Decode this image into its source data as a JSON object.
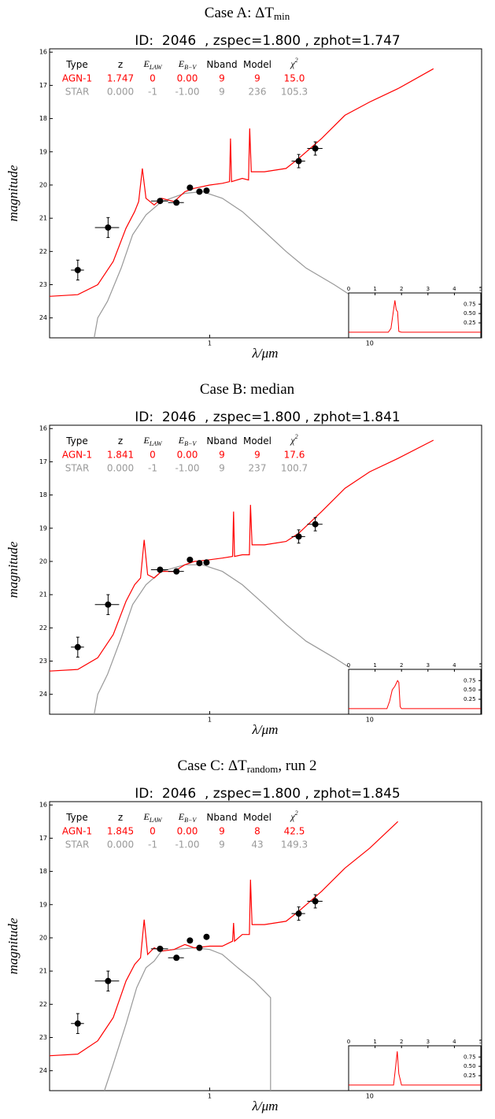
{
  "chart_data": [
    {
      "type": "sed",
      "title": {
        "text": "Case A: ΔT",
        "sub": "min"
      },
      "plot_title": "ID:  2046  , zspec=1.800 , zphot=1.747",
      "x_label": "λ/μm",
      "y_label": "magnitude",
      "log_x": true,
      "xlim": [
        0.1,
        50
      ],
      "xticks": [
        1,
        10
      ],
      "ylim": [
        24.6,
        15.9
      ],
      "yticks": [
        16,
        17,
        18,
        19,
        20,
        21,
        22,
        23,
        24
      ],
      "table": {
        "header": [
          {
            "text": "Type"
          },
          {
            "text": "z"
          },
          {
            "text": "E",
            "sub": "LAW"
          },
          {
            "text": "E",
            "sub": "B−V"
          },
          {
            "text": "Nband"
          },
          {
            "text": "Model"
          },
          {
            "text": "χ",
            "sup": "2"
          }
        ],
        "rows": [
          {
            "color": "#ff0000",
            "cells": [
              "AGN-1",
              "1.747",
              "0",
              "0.00",
              "9",
              "9",
              "15.0"
            ]
          },
          {
            "color": "#999999",
            "cells": [
              "STAR",
              "0.000",
              "-1",
              "-1.00",
              "9",
              "236",
              "105.3"
            ]
          }
        ]
      },
      "points": {
        "color": "#000000",
        "x": [
          0.15,
          0.232,
          0.49,
          0.62,
          0.753,
          0.863,
          0.956,
          3.6,
          4.57
        ],
        "y": [
          22.56,
          21.28,
          20.48,
          20.53,
          20.08,
          20.2,
          20.17,
          19.28,
          18.9
        ],
        "xerr": [
          0.014,
          0.04,
          0.06,
          0.07,
          0.02,
          0.03,
          0.03,
          0.35,
          0.5
        ],
        "yerr": [
          0.3,
          0.3,
          0.05,
          0.05,
          0.05,
          0.05,
          0.05,
          0.2,
          0.2
        ]
      },
      "curves": [
        {
          "color": "#999999",
          "x": [
            0.19,
            0.2,
            0.23,
            0.28,
            0.33,
            0.4,
            0.5,
            0.7,
            0.9,
            1.2,
            1.6,
            2.2,
            3,
            4,
            6,
            7.5
          ],
          "y": [
            24.6,
            24.0,
            23.5,
            22.5,
            21.5,
            20.9,
            20.5,
            20.25,
            20.2,
            20.4,
            20.8,
            21.4,
            22.0,
            22.5,
            23.0,
            23.3
          ]
        },
        {
          "color": "#ff0000",
          "x": [
            0.1,
            0.15,
            0.2,
            0.25,
            0.3,
            0.34,
            0.36,
            0.38,
            0.4,
            0.45,
            0.5,
            0.6,
            0.7,
            0.8,
            1.0,
            1.2,
            1.33,
            1.35,
            1.37,
            1.6,
            1.75,
            1.78,
            1.82,
            2.2,
            3,
            3.6,
            5,
            7,
            10,
            15,
            25
          ],
          "y": [
            23.35,
            23.3,
            23.0,
            22.3,
            21.3,
            20.8,
            20.5,
            19.5,
            20.4,
            20.6,
            20.4,
            20.5,
            20.2,
            20.1,
            20.0,
            19.95,
            19.9,
            18.6,
            19.9,
            19.8,
            19.85,
            18.3,
            19.6,
            19.6,
            19.5,
            19.2,
            18.6,
            17.9,
            17.5,
            17.1,
            16.5
          ]
        }
      ],
      "inset": {
        "xlim": [
          0,
          5
        ],
        "xticks": [
          0,
          1,
          2,
          3,
          4,
          5
        ],
        "ylim": [
          -0.15,
          1.05
        ],
        "yticks": [
          0.25,
          {
            "value": 0.5,
            "label": "0.50"
          },
          0.75
        ],
        "color": "#ff0000",
        "x": [
          0,
          1.5,
          1.6,
          1.7,
          1.75,
          1.8,
          1.85,
          1.9,
          2.0,
          5
        ],
        "y": [
          0,
          0,
          0.1,
          0.6,
          0.85,
          0.6,
          0.55,
          0.02,
          0,
          0
        ]
      }
    },
    {
      "type": "sed",
      "title": {
        "text": "Case B: median"
      },
      "plot_title": "ID:  2046  , zspec=1.800 , zphot=1.841",
      "x_label": "λ/μm",
      "y_label": "magnitude",
      "log_x": true,
      "xlim": [
        0.1,
        50
      ],
      "xticks": [
        1,
        10
      ],
      "ylim": [
        24.6,
        15.9
      ],
      "yticks": [
        16,
        17,
        18,
        19,
        20,
        21,
        22,
        23,
        24
      ],
      "table": {
        "header": [
          {
            "text": "Type"
          },
          {
            "text": "z"
          },
          {
            "text": "E",
            "sub": "LAW"
          },
          {
            "text": "E",
            "sub": "B−V"
          },
          {
            "text": "Nband"
          },
          {
            "text": "Model"
          },
          {
            "text": "χ",
            "sup": "2"
          }
        ],
        "rows": [
          {
            "color": "#ff0000",
            "cells": [
              "AGN-1",
              "1.841",
              "0",
              "0.00",
              "9",
              "9",
              "17.6"
            ]
          },
          {
            "color": "#999999",
            "cells": [
              "STAR",
              "0.000",
              "-1",
              "-1.00",
              "9",
              "237",
              "100.7"
            ]
          }
        ]
      },
      "points": {
        "color": "#000000",
        "x": [
          0.15,
          0.232,
          0.49,
          0.62,
          0.753,
          0.863,
          0.956,
          3.6,
          4.57
        ],
        "y": [
          22.58,
          21.3,
          20.25,
          20.3,
          19.95,
          20.05,
          20.03,
          19.25,
          18.88
        ],
        "xerr": [
          0.014,
          0.04,
          0.06,
          0.07,
          0.02,
          0.03,
          0.03,
          0.35,
          0.5
        ],
        "yerr": [
          0.3,
          0.3,
          0.05,
          0.05,
          0.05,
          0.05,
          0.05,
          0.2,
          0.2
        ]
      },
      "curves": [
        {
          "color": "#999999",
          "x": [
            0.19,
            0.2,
            0.23,
            0.28,
            0.33,
            0.4,
            0.5,
            0.7,
            0.9,
            1.2,
            1.6,
            2.2,
            3,
            4,
            6,
            7.5
          ],
          "y": [
            24.6,
            24.0,
            23.4,
            22.3,
            21.3,
            20.7,
            20.3,
            20.1,
            20.1,
            20.3,
            20.7,
            21.3,
            21.9,
            22.4,
            22.9,
            23.2
          ]
        },
        {
          "color": "#ff0000",
          "x": [
            0.1,
            0.15,
            0.2,
            0.25,
            0.3,
            0.34,
            0.37,
            0.39,
            0.41,
            0.45,
            0.5,
            0.6,
            0.7,
            0.8,
            1.0,
            1.2,
            1.39,
            1.41,
            1.43,
            1.6,
            1.77,
            1.8,
            1.84,
            2.2,
            3,
            3.6,
            5,
            7,
            10,
            15,
            25
          ],
          "y": [
            23.3,
            23.25,
            22.9,
            22.2,
            21.2,
            20.7,
            20.5,
            19.35,
            20.4,
            20.5,
            20.3,
            20.3,
            20.1,
            20.0,
            19.95,
            19.9,
            19.85,
            18.5,
            19.85,
            19.8,
            19.8,
            18.3,
            19.5,
            19.5,
            19.4,
            19.15,
            18.5,
            17.8,
            17.3,
            16.9,
            16.35
          ]
        }
      ],
      "inset": {
        "xlim": [
          0,
          5
        ],
        "xticks": [
          0,
          1,
          2,
          3,
          4,
          5
        ],
        "ylim": [
          -0.15,
          1.05
        ],
        "yticks": [
          0.25,
          {
            "value": 0.5,
            "label": "0.50"
          },
          0.75
        ],
        "color": "#ff0000",
        "x": [
          0,
          1.45,
          1.55,
          1.65,
          1.75,
          1.85,
          1.9,
          1.95,
          2.0,
          5
        ],
        "y": [
          0,
          0,
          0.2,
          0.5,
          0.6,
          0.75,
          0.7,
          0.05,
          0,
          0
        ]
      }
    },
    {
      "type": "sed",
      "title": {
        "text": "Case C: ΔT",
        "sub": "random",
        "tail": ", run 2"
      },
      "plot_title": "ID:  2046  , zspec=1.800 , zphot=1.845",
      "x_label": "λ/μm",
      "y_label": "magnitude",
      "log_x": true,
      "xlim": [
        0.1,
        50
      ],
      "xticks": [
        1,
        10
      ],
      "ylim": [
        24.6,
        15.9
      ],
      "yticks": [
        16,
        17,
        18,
        19,
        20,
        21,
        22,
        23,
        24
      ],
      "table": {
        "header": [
          {
            "text": "Type"
          },
          {
            "text": "z"
          },
          {
            "text": "E",
            "sub": "LAW"
          },
          {
            "text": "E",
            "sub": "B−V"
          },
          {
            "text": "Nband"
          },
          {
            "text": "Model"
          },
          {
            "text": "χ",
            "sup": "2"
          }
        ],
        "rows": [
          {
            "color": "#ff0000",
            "cells": [
              "AGN-1",
              "1.845",
              "0",
              "0.00",
              "9",
              "8",
              "42.5"
            ]
          },
          {
            "color": "#999999",
            "cells": [
              "STAR",
              "0.000",
              "-1",
              "-1.00",
              "9",
              "43",
              "149.3"
            ]
          }
        ]
      },
      "points": {
        "color": "#000000",
        "x": [
          0.15,
          0.232,
          0.49,
          0.62,
          0.753,
          0.863,
          0.956,
          3.6,
          4.57
        ],
        "y": [
          22.58,
          21.3,
          20.33,
          20.6,
          20.08,
          20.3,
          19.97,
          19.27,
          18.9
        ],
        "xerr": [
          0.014,
          0.04,
          0.06,
          0.07,
          0.02,
          0.03,
          0.03,
          0.35,
          0.5
        ],
        "yerr": [
          0.3,
          0.3,
          0.05,
          0.05,
          0.05,
          0.05,
          0.05,
          0.2,
          0.2
        ]
      },
      "curves": [
        {
          "color": "#999999",
          "x": [
            0.22,
            0.25,
            0.3,
            0.35,
            0.4,
            0.45,
            0.5,
            0.6,
            0.8,
            1.0,
            1.2,
            1.5,
            1.9,
            2.4,
            2.4
          ],
          "y": [
            24.6,
            23.8,
            22.6,
            21.5,
            20.9,
            20.7,
            20.4,
            20.35,
            20.3,
            20.35,
            20.5,
            20.9,
            21.3,
            21.8,
            24.6
          ]
        },
        {
          "color": "#ff0000",
          "x": [
            0.1,
            0.15,
            0.2,
            0.25,
            0.3,
            0.34,
            0.37,
            0.39,
            0.41,
            0.45,
            0.5,
            0.6,
            0.7,
            0.8,
            1.0,
            1.2,
            1.39,
            1.41,
            1.43,
            1.6,
            1.77,
            1.8,
            1.84,
            2.2,
            3,
            3.6,
            5,
            7,
            10,
            15
          ],
          "y": [
            23.55,
            23.5,
            23.1,
            22.4,
            21.3,
            20.8,
            20.6,
            19.45,
            20.5,
            20.3,
            20.4,
            20.35,
            20.2,
            20.3,
            20.25,
            20.25,
            20.1,
            19.55,
            20.1,
            19.9,
            19.9,
            18.25,
            19.6,
            19.6,
            19.5,
            19.2,
            18.6,
            17.9,
            17.3,
            16.5
          ]
        }
      ],
      "inset": {
        "xlim": [
          0,
          5
        ],
        "xticks": [
          0,
          1,
          2,
          3,
          4,
          5
        ],
        "ylim": [
          -0.15,
          1.05
        ],
        "yticks": [
          0.25,
          {
            "value": 0.5,
            "label": "0.50"
          },
          0.75
        ],
        "color": "#ff0000",
        "x": [
          0,
          1.7,
          1.78,
          1.84,
          1.9,
          2.0,
          5
        ],
        "y": [
          0,
          0,
          0.5,
          0.9,
          0.3,
          0,
          0
        ]
      }
    }
  ]
}
